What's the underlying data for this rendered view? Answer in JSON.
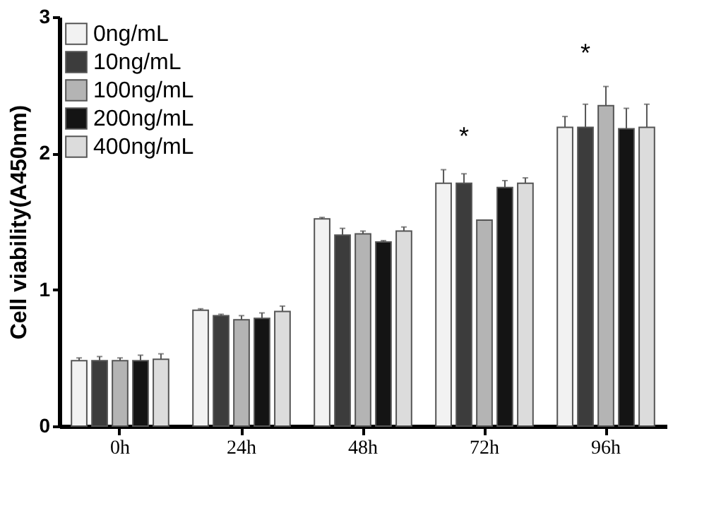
{
  "chart_data": {
    "type": "bar",
    "ylabel": "Cell viability(A450nm)",
    "categories": [
      "0h",
      "24h",
      "48h",
      "72h",
      "96h"
    ],
    "ylim": [
      0,
      3
    ],
    "yticks": [
      0,
      1,
      2,
      3
    ],
    "grid": false,
    "legend": "top left",
    "series": [
      {
        "name": "0ng/mL",
        "color": "#f2f2f2",
        "values": [
          0.48,
          0.85,
          1.52,
          1.78,
          2.19
        ],
        "errors": [
          [
            0.48,
            0.5
          ],
          [
            0.85,
            0.86
          ],
          [
            1.52,
            1.53
          ],
          [
            1.78,
            1.88
          ],
          [
            2.19,
            2.27
          ]
        ]
      },
      {
        "name": "10ng/mL",
        "color": "#3c3c3c",
        "values": [
          0.48,
          0.81,
          1.4,
          1.78,
          2.19
        ],
        "errors": [
          [
            0.48,
            0.51
          ],
          [
            0.81,
            0.82
          ],
          [
            1.4,
            1.45
          ],
          [
            1.78,
            1.85
          ],
          [
            2.19,
            2.36
          ]
        ]
      },
      {
        "name": "100ng/mL",
        "color": "#b4b4b4",
        "values": [
          0.48,
          0.78,
          1.41,
          1.51,
          2.35
        ],
        "errors": [
          [
            0.48,
            0.5
          ],
          [
            0.78,
            0.81
          ],
          [
            1.41,
            1.43
          ],
          [
            1.51,
            1.51
          ],
          [
            2.35,
            2.49
          ]
        ]
      },
      {
        "name": "200ng/mL",
        "color": "#141414",
        "values": [
          0.48,
          0.79,
          1.35,
          1.75,
          2.18
        ],
        "errors": [
          [
            0.48,
            0.52
          ],
          [
            0.79,
            0.83
          ],
          [
            1.35,
            1.36
          ],
          [
            1.75,
            1.8
          ],
          [
            2.18,
            2.33
          ]
        ]
      },
      {
        "name": "400ng/mL",
        "color": "#dcdcdc",
        "values": [
          0.49,
          0.84,
          1.43,
          1.78,
          2.19
        ],
        "errors": [
          [
            0.49,
            0.53
          ],
          [
            0.84,
            0.88
          ],
          [
            1.43,
            1.46
          ],
          [
            1.78,
            1.82
          ],
          [
            2.19,
            2.36
          ]
        ]
      }
    ],
    "annotations": [
      "*",
      "*"
    ]
  }
}
